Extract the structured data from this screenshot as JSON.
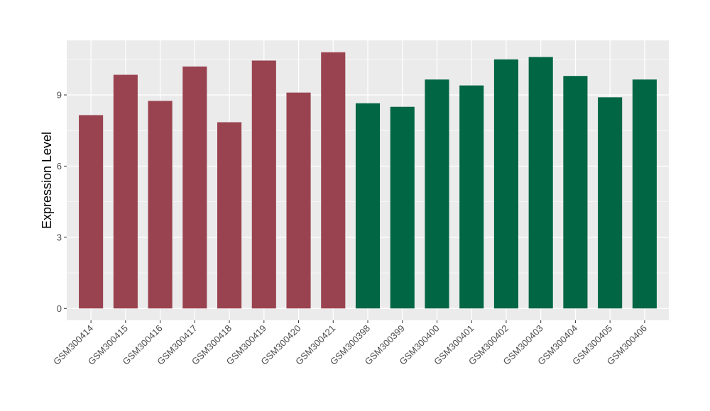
{
  "chart_data": {
    "type": "bar",
    "ylabel": "Expression Level",
    "xlabel": "",
    "ylim": [
      -0.5,
      11.3
    ],
    "yticks": [
      0,
      3,
      6,
      9
    ],
    "grid": true,
    "legend": "none",
    "colors": {
      "panel_bg": "#ebebeb",
      "grid_major": "#ffffff",
      "group_a": "#9a4350",
      "group_b": "#006644"
    },
    "categories": [
      "GSM300414",
      "GSM300415",
      "GSM300416",
      "GSM300417",
      "GSM300418",
      "GSM300419",
      "GSM300420",
      "GSM300421",
      "GSM300398",
      "GSM300399",
      "GSM300400",
      "GSM300401",
      "GSM300402",
      "GSM300403",
      "GSM300404",
      "GSM300405",
      "GSM300406"
    ],
    "values": [
      8.15,
      9.85,
      8.75,
      10.2,
      7.85,
      10.45,
      9.1,
      10.8,
      8.65,
      8.5,
      9.65,
      9.4,
      10.5,
      10.6,
      9.8,
      8.9,
      9.65
    ],
    "groups": [
      "a",
      "a",
      "a",
      "a",
      "a",
      "a",
      "a",
      "a",
      "b",
      "b",
      "b",
      "b",
      "b",
      "b",
      "b",
      "b",
      "b"
    ]
  }
}
